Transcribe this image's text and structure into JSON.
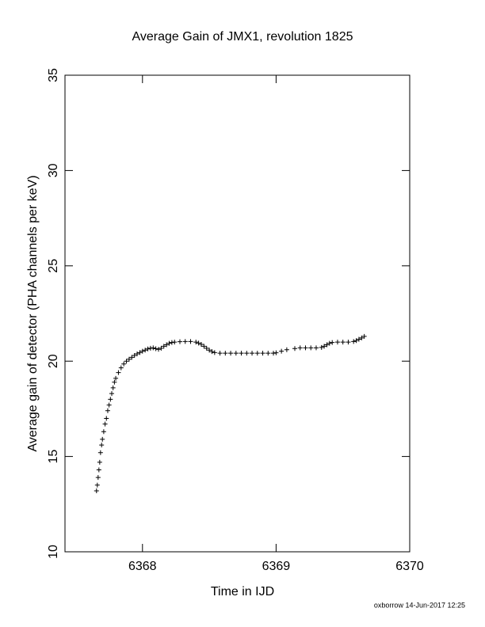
{
  "chart_data": {
    "type": "scatter",
    "title": "Average Gain of JMX1, revolution 1825",
    "x_label": "Time in IJD",
    "y_label": "Average gain of detector (PHA channels per keV)",
    "footer": "oxborrow 14-Jun-2017 12:25",
    "marker": "plus",
    "color": "#000000",
    "xlim": [
      6367.42,
      6370
    ],
    "xticks": [
      6368,
      6369,
      6370
    ],
    "ylim": [
      10,
      35
    ],
    "yticks": [
      10,
      15,
      20,
      25,
      30,
      35
    ],
    "x": [
      6367.656,
      6367.662,
      6367.668,
      6367.674,
      6367.68,
      6367.686,
      6367.694,
      6367.7,
      6367.71,
      6367.72,
      6367.73,
      6367.74,
      6367.75,
      6367.76,
      6367.77,
      6367.78,
      6367.79,
      6367.8,
      6367.82,
      6367.84,
      6367.86,
      6367.88,
      6367.9,
      6367.92,
      6367.94,
      6367.96,
      6367.98,
      6368.0,
      6368.02,
      6368.04,
      6368.06,
      6368.08,
      6368.1,
      6368.12,
      6368.14,
      6368.16,
      6368.18,
      6368.2,
      6368.22,
      6368.24,
      6368.28,
      6368.32,
      6368.36,
      6368.4,
      6368.42,
      6368.44,
      6368.46,
      6368.48,
      6368.5,
      6368.52,
      6368.54,
      6368.58,
      6368.62,
      6368.66,
      6368.7,
      6368.74,
      6368.78,
      6368.82,
      6368.86,
      6368.9,
      6368.94,
      6368.98,
      6369.0,
      6369.04,
      6369.08,
      6369.14,
      6369.18,
      6369.22,
      6369.26,
      6369.3,
      6369.34,
      6369.36,
      6369.38,
      6369.4,
      6369.42,
      6369.46,
      6369.5,
      6369.54,
      6369.58,
      6369.6,
      6369.62,
      6369.64,
      6369.66
    ],
    "values": [
      13.2,
      13.5,
      13.9,
      14.3,
      14.7,
      15.2,
      15.6,
      15.9,
      16.3,
      16.7,
      17.0,
      17.4,
      17.7,
      18.0,
      18.3,
      18.6,
      18.9,
      19.1,
      19.4,
      19.65,
      19.85,
      20.0,
      20.1,
      20.2,
      20.3,
      20.38,
      20.45,
      20.52,
      20.58,
      20.64,
      20.68,
      20.7,
      20.65,
      20.62,
      20.68,
      20.78,
      20.86,
      20.94,
      20.98,
      21.0,
      21.02,
      21.03,
      21.03,
      21.0,
      20.95,
      20.88,
      20.78,
      20.68,
      20.58,
      20.5,
      20.45,
      20.42,
      20.42,
      20.42,
      20.42,
      20.42,
      20.42,
      20.42,
      20.42,
      20.42,
      20.42,
      20.42,
      20.44,
      20.52,
      20.6,
      20.66,
      20.7,
      20.7,
      20.7,
      20.7,
      20.72,
      20.78,
      20.86,
      20.94,
      20.98,
      21.0,
      21.0,
      21.0,
      21.03,
      21.08,
      21.15,
      21.22,
      21.3
    ]
  }
}
